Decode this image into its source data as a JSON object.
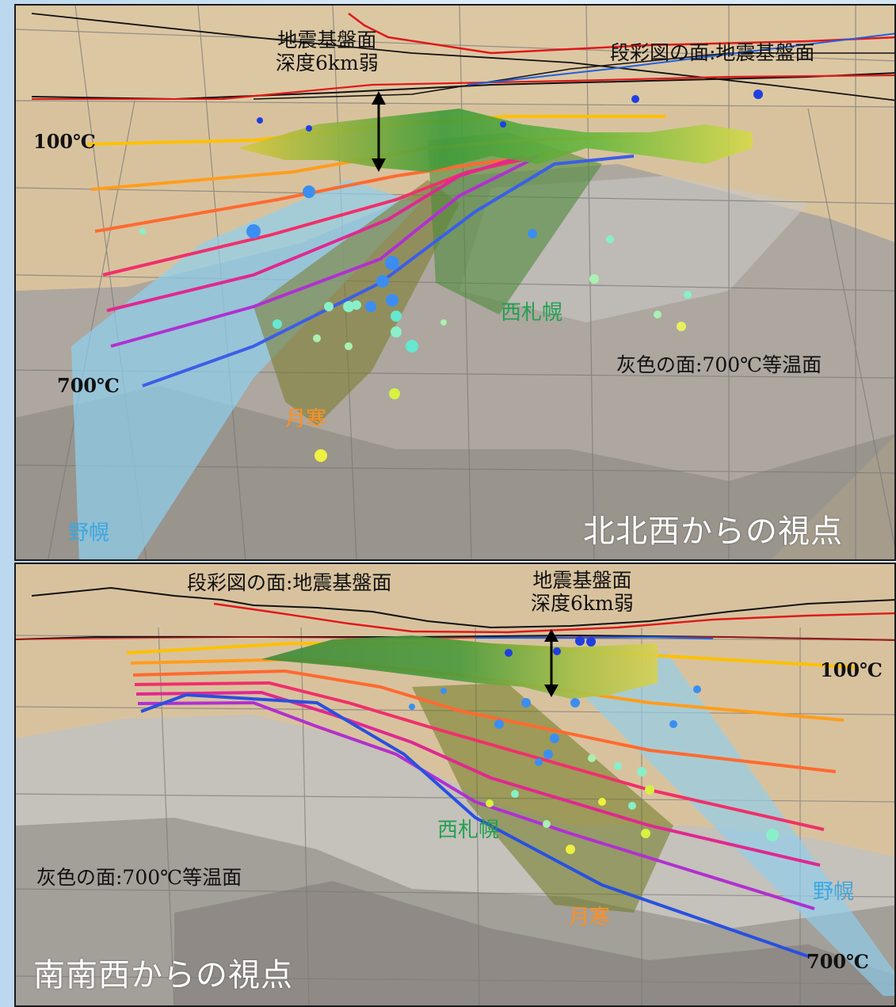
{
  "top_panel": {
    "view_label": "北北西からの視点",
    "basement_label_line1": "地震基盤面",
    "basement_label_line2": "深度6km弱",
    "legend_colored_surface": "段彩図の面:地震基盤面",
    "legend_gray_surface": "灰色の面:700℃等温面",
    "temp_low": "100℃",
    "temp_high": "700℃",
    "station_nishisapporo": "西札幌",
    "station_tsukisamu": "月寒",
    "station_nopporo": "野幌"
  },
  "bottom_panel": {
    "view_label": "南南西からの視点",
    "basement_label_line1": "地震基盤面",
    "basement_label_line2": "深度6km弱",
    "legend_colored_surface": "段彩図の面:地震基盤面",
    "legend_gray_surface": "灰色の面:700℃等温面",
    "temp_low": "100℃",
    "temp_high": "700℃",
    "station_nishisapporo": "西札幌",
    "station_tsukisamu": "月寒",
    "station_nopporo": "野幌"
  },
  "colors": {
    "background": "#d8c29e",
    "isotherm_100": "#ffc000",
    "isotherm_700": "#2850e0",
    "nishisapporo": "#22a050",
    "tsukisamu": "#ff9020",
    "nopporo": "#3aa8e0"
  }
}
